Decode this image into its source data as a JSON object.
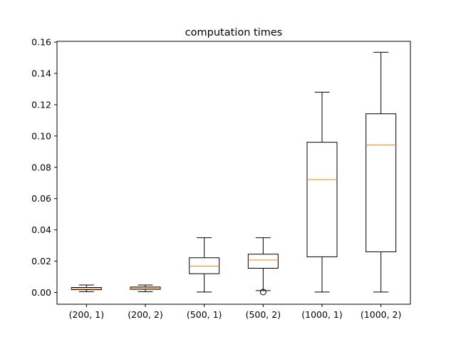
{
  "chart_data": {
    "type": "box",
    "title": "computation times",
    "xlabel": "",
    "ylabel": "",
    "categories": [
      "(200, 1)",
      "(200, 2)",
      "(500, 1)",
      "(500, 2)",
      "(1000, 1)",
      "(1000, 2)"
    ],
    "boxes": [
      {
        "whisker_low": 0.0005,
        "q1": 0.0018,
        "median": 0.0025,
        "q3": 0.0032,
        "whisker_high": 0.0048,
        "outliers": []
      },
      {
        "whisker_low": 0.0005,
        "q1": 0.002,
        "median": 0.0028,
        "q3": 0.0035,
        "whisker_high": 0.0048,
        "outliers": []
      },
      {
        "whisker_low": 0.0003,
        "q1": 0.012,
        "median": 0.0168,
        "q3": 0.0222,
        "whisker_high": 0.035,
        "outliers": []
      },
      {
        "whisker_low": 0.0012,
        "q1": 0.0155,
        "median": 0.0208,
        "q3": 0.0245,
        "whisker_high": 0.035,
        "outliers": [
          0.0003
        ]
      },
      {
        "whisker_low": 0.0003,
        "q1": 0.0228,
        "median": 0.0722,
        "q3": 0.096,
        "whisker_high": 0.128,
        "outliers": []
      },
      {
        "whisker_low": 0.0003,
        "q1": 0.026,
        "median": 0.0942,
        "q3": 0.1142,
        "whisker_high": 0.1535,
        "outliers": []
      }
    ],
    "ylim": [
      -0.0075,
      0.1605
    ],
    "yticks": [
      0.0,
      0.02,
      0.04,
      0.06,
      0.08,
      0.1,
      0.12,
      0.14,
      0.16
    ],
    "ytick_labels": [
      "0.00",
      "0.02",
      "0.04",
      "0.06",
      "0.08",
      "0.10",
      "0.12",
      "0.14",
      "0.16"
    ],
    "grid": false,
    "colors": {
      "box": "#000000",
      "median": "#ff7f0e",
      "background": "#ffffff"
    }
  }
}
